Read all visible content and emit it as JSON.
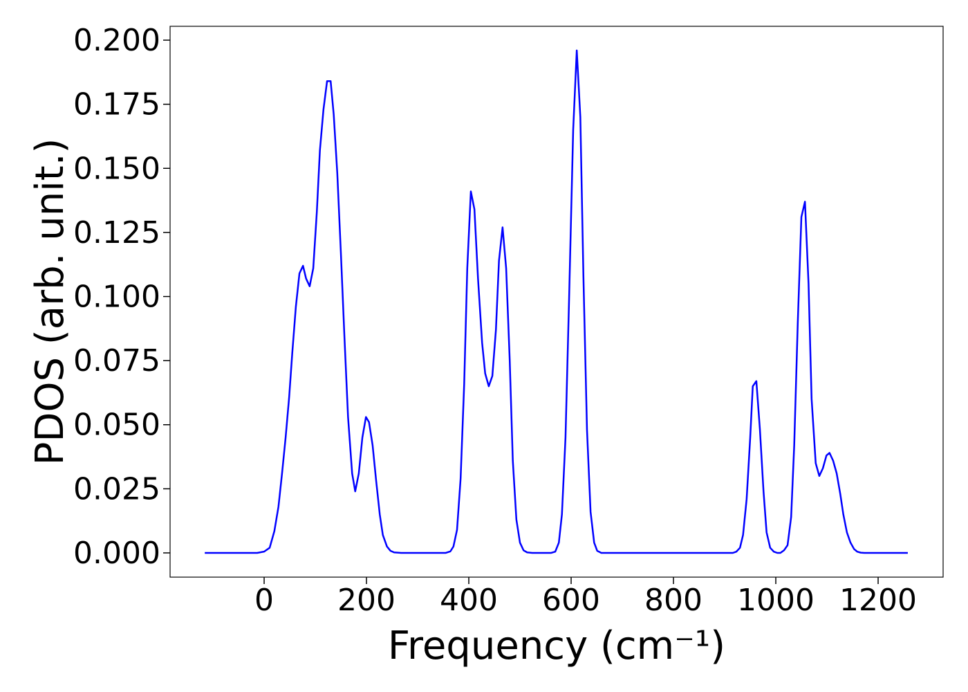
{
  "chart_data": {
    "type": "line",
    "x_label": "Frequency (cm⁻¹)",
    "y_label": "PDOS (arb. unit.)",
    "x": [
      -116,
      -13.5,
      0,
      10.8,
      20,
      28,
      35,
      42,
      49,
      55,
      62,
      69,
      76,
      82,
      89,
      96,
      103,
      109,
      116,
      123,
      130,
      136,
      143,
      150,
      157,
      164,
      172,
      178,
      185,
      192,
      199,
      205,
      212,
      219,
      226,
      232,
      240,
      247,
      254,
      268,
      355,
      364,
      370,
      377,
      384,
      391,
      397,
      404,
      411,
      418,
      426,
      432,
      439,
      446,
      453,
      459,
      466,
      473,
      480,
      486,
      493,
      500,
      507,
      514,
      524,
      561,
      569,
      576,
      582,
      589,
      596,
      604,
      611,
      618,
      624,
      631,
      638,
      645,
      651,
      659,
      916,
      923,
      930,
      936,
      943,
      950,
      955,
      962,
      969,
      976,
      982,
      989,
      996,
      1003,
      1009,
      1016,
      1023,
      1030,
      1036,
      1043,
      1050,
      1057,
      1064,
      1070,
      1078,
      1085,
      1092,
      1099,
      1105,
      1112,
      1119,
      1126,
      1132,
      1139,
      1146,
      1153,
      1159,
      1166,
      1173,
      1258
    ],
    "series": [
      {
        "name": "PDOS",
        "color": "#0000ff",
        "values": [
          0,
          0,
          0.0005,
          0.002,
          0.0085,
          0.018,
          0.031,
          0.045,
          0.061,
          0.078,
          0.096,
          0.109,
          0.112,
          0.107,
          0.104,
          0.111,
          0.133,
          0.157,
          0.173,
          0.184,
          0.184,
          0.171,
          0.148,
          0.117,
          0.084,
          0.053,
          0.031,
          0.024,
          0.031,
          0.045,
          0.053,
          0.051,
          0.042,
          0.028,
          0.015,
          0.007,
          0.0025,
          0.0008,
          0.0002,
          0,
          0,
          0.0006,
          0.0025,
          0.009,
          0.029,
          0.066,
          0.111,
          0.141,
          0.134,
          0.107,
          0.082,
          0.07,
          0.065,
          0.069,
          0.087,
          0.114,
          0.127,
          0.111,
          0.075,
          0.036,
          0.013,
          0.004,
          0.001,
          0.0002,
          0,
          0,
          0.0005,
          0.004,
          0.015,
          0.045,
          0.099,
          0.165,
          0.196,
          0.17,
          0.108,
          0.048,
          0.016,
          0.004,
          0.0008,
          0,
          0,
          0.0005,
          0.002,
          0.007,
          0.021,
          0.045,
          0.065,
          0.067,
          0.048,
          0.024,
          0.008,
          0.002,
          0.0005,
          0,
          0,
          0.001,
          0.003,
          0.014,
          0.042,
          0.09,
          0.131,
          0.137,
          0.105,
          0.06,
          0.035,
          0.03,
          0.033,
          0.038,
          0.039,
          0.036,
          0.031,
          0.023,
          0.015,
          0.008,
          0.004,
          0.0015,
          0.0005,
          0.0001,
          0,
          0
        ]
      }
    ],
    "xlim": [
      -183.8,
      1327
    ],
    "xticks": [
      0,
      200,
      400,
      600,
      800,
      1000,
      1200
    ],
    "ylim": [
      -0.00945,
      0.2054
    ],
    "yticks": [
      {
        "value": 0,
        "label": "0.000"
      },
      {
        "value": 0.025,
        "label": "0.025"
      },
      {
        "value": 0.05,
        "label": "0.050"
      },
      {
        "value": 0.075,
        "label": "0.075"
      },
      {
        "value": 0.1,
        "label": "0.100"
      },
      {
        "value": 0.125,
        "label": "0.125"
      },
      {
        "value": 0.15,
        "label": "0.150"
      },
      {
        "value": 0.175,
        "label": "0.175"
      },
      {
        "value": 0.2,
        "label": "0.200"
      }
    ],
    "grid": false
  }
}
